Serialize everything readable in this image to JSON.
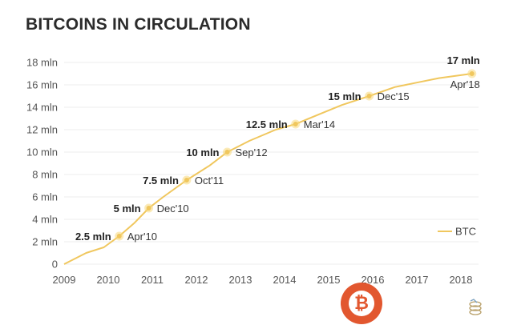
{
  "title": "BITCOINS IN CIRCULATION",
  "chart_data": {
    "type": "line",
    "title": "BITCOINS IN CIRCULATION",
    "xlabel": "",
    "ylabel": "",
    "x_ticks": [
      "2009",
      "2010",
      "2011",
      "2012",
      "2013",
      "2014",
      "2015",
      "2016",
      "2017",
      "2018"
    ],
    "y_ticks": [
      "0",
      "2 mln",
      "4 mln",
      "6 mln",
      "8 mln",
      "10 mln",
      "12 mln",
      "14 mln",
      "16 mln",
      "18 mln"
    ],
    "xlim": [
      2009,
      2018.4
    ],
    "ylim": [
      0,
      18
    ],
    "grid": "horizontal",
    "legend_position": "bottom-right",
    "series": [
      {
        "name": "BTC",
        "color": "#f0c75e",
        "x": [
          2009.0,
          2009.5,
          2009.9,
          2010.25,
          2010.6,
          2010.92,
          2011.25,
          2011.78,
          2012.3,
          2012.7,
          2013.2,
          2013.8,
          2014.25,
          2014.8,
          2015.3,
          2015.92,
          2016.5,
          2017.0,
          2017.5,
          2018.25
        ],
        "y": [
          0,
          1.0,
          1.5,
          2.5,
          3.7,
          5.0,
          6.0,
          7.5,
          8.8,
          10.0,
          11.0,
          12.0,
          12.5,
          13.4,
          14.2,
          15.0,
          15.8,
          16.2,
          16.6,
          17.0
        ]
      }
    ],
    "annotations": [
      {
        "x": 2010.25,
        "y": 2.5,
        "value": "2.5 mln",
        "date": "Apr'10"
      },
      {
        "x": 2010.92,
        "y": 5.0,
        "value": "5 mln",
        "date": "Dec'10"
      },
      {
        "x": 2011.78,
        "y": 7.5,
        "value": "7.5 mln",
        "date": "Oct'11"
      },
      {
        "x": 2012.7,
        "y": 10.0,
        "value": "10 mln",
        "date": "Sep'12"
      },
      {
        "x": 2014.25,
        "y": 12.5,
        "value": "12.5 mln",
        "date": "Mar'14"
      },
      {
        "x": 2015.92,
        "y": 15.0,
        "value": "15 mln",
        "date": "Dec'15"
      },
      {
        "x": 2018.25,
        "y": 17.0,
        "value": "17 mln",
        "date": "Apr'18"
      }
    ]
  },
  "icons": {
    "watermark": "bitcoin-logo-icon",
    "corner": "coin-stack-icon"
  },
  "colors": {
    "line": "#f0c75e",
    "marker_fill": "#f7d87c",
    "grid": "#ececec",
    "watermark": "#e2572f"
  }
}
